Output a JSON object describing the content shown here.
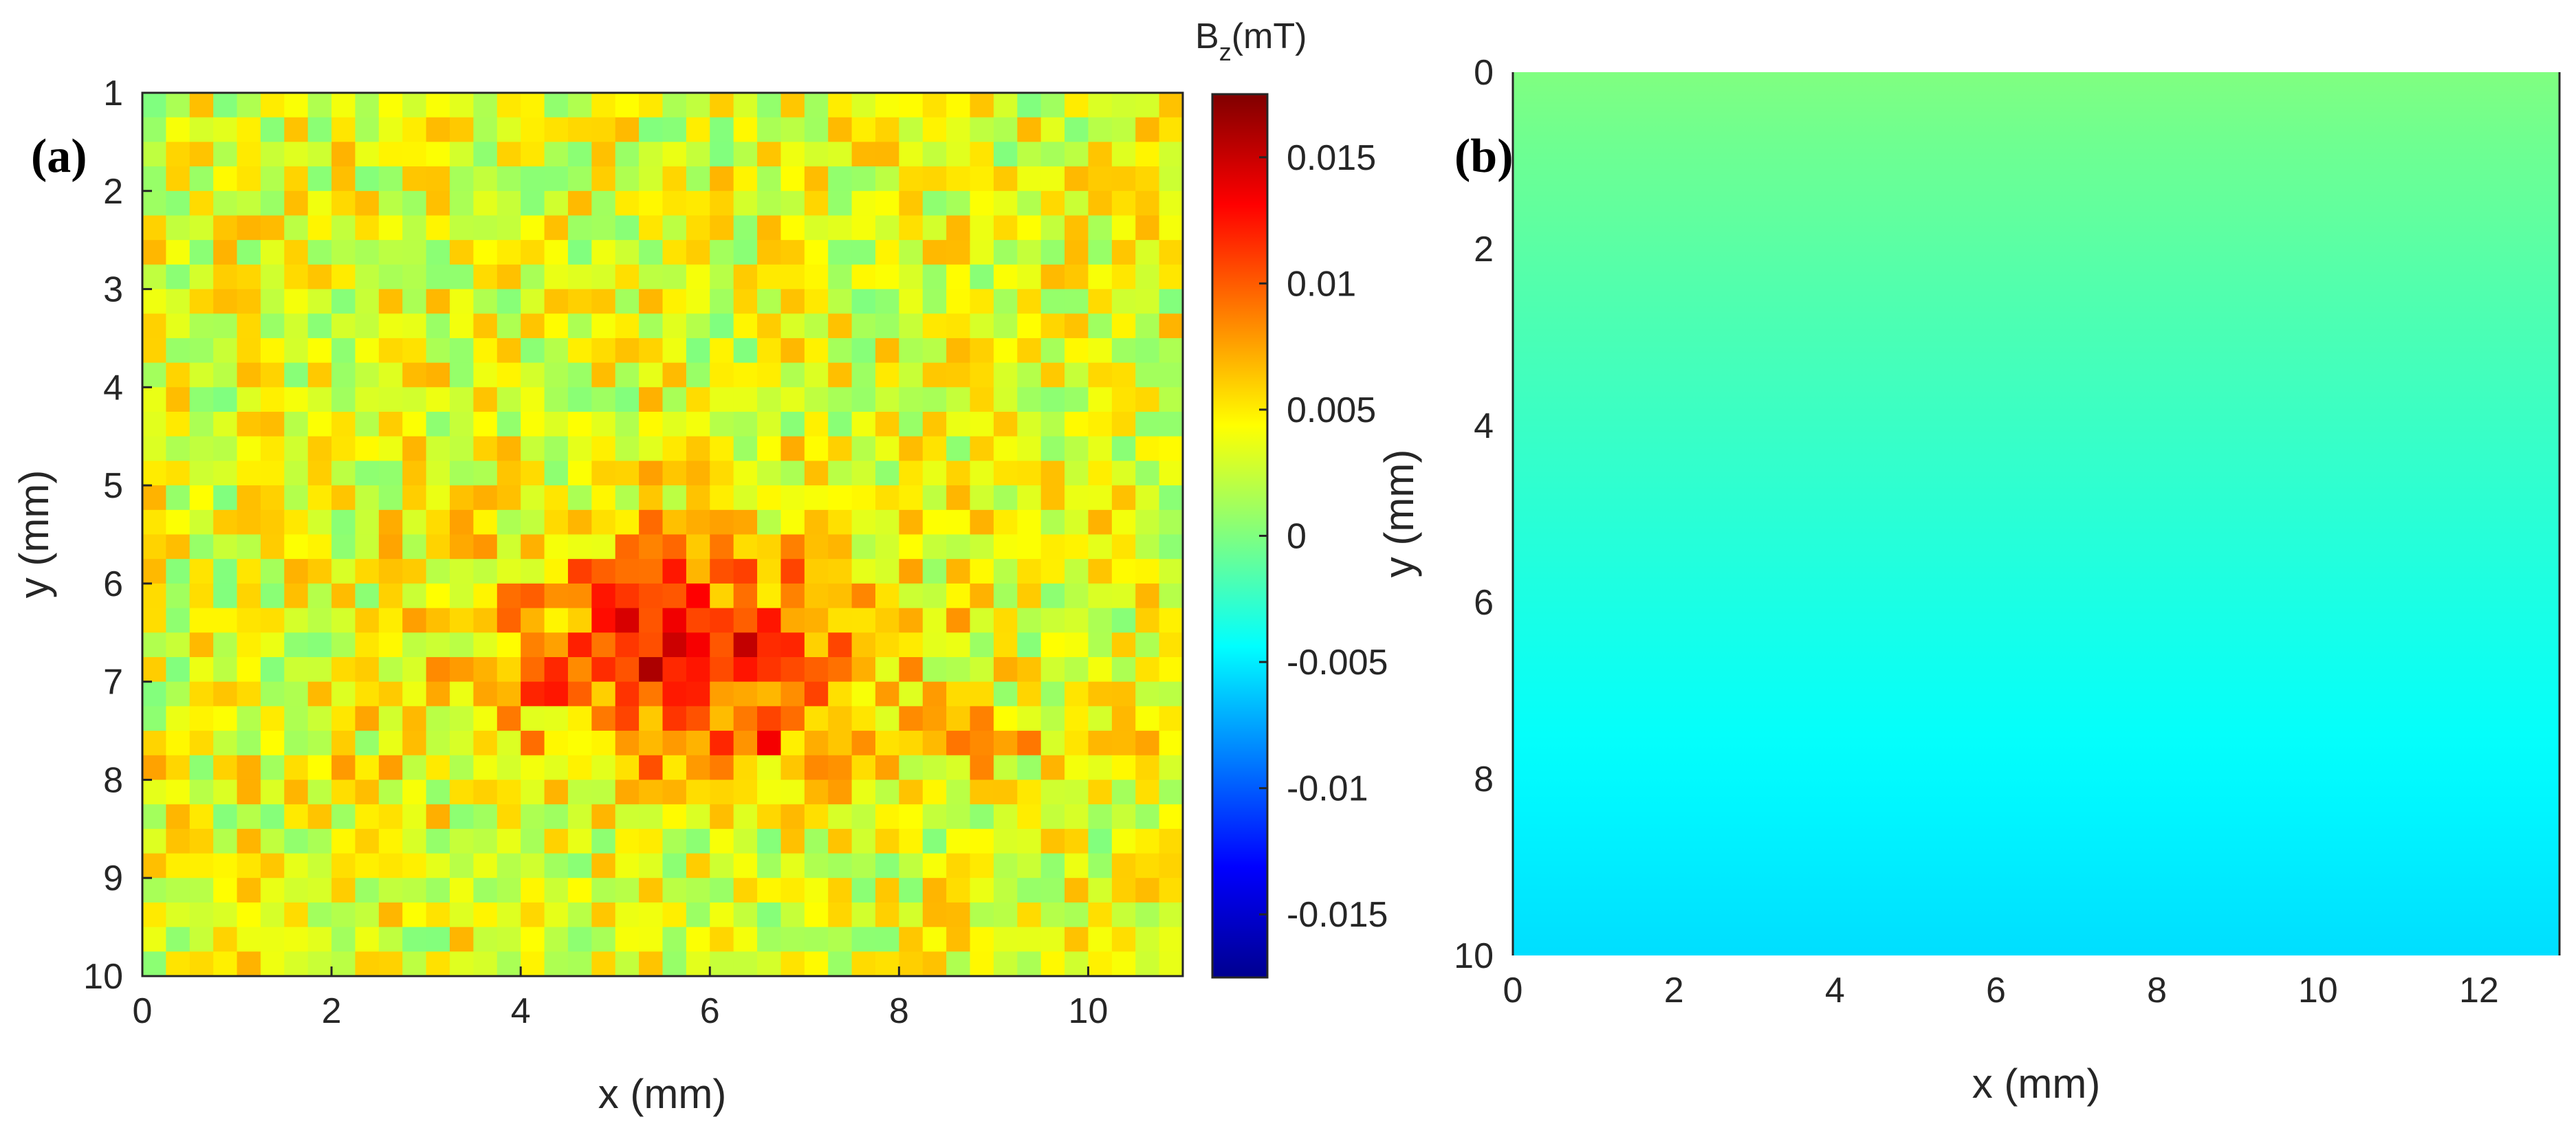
{
  "chart_data": [
    {
      "type": "heatmap",
      "panel_label": "(a)",
      "xlabel": "x (mm)",
      "ylabel": "y (mm)",
      "xlim": [
        0,
        11
      ],
      "ylim": [
        1,
        10
      ],
      "y_direction": "down",
      "xticks": [
        0,
        2,
        4,
        6,
        8,
        10
      ],
      "xtick_labels": [
        "0",
        "2",
        "4",
        "6",
        "8",
        "10"
      ],
      "yticks": [
        1,
        2,
        3,
        4,
        5,
        6,
        7,
        8,
        9,
        10
      ],
      "ytick_labels": [
        "1",
        "2",
        "3",
        "4",
        "5",
        "6",
        "7",
        "8",
        "9",
        "10"
      ],
      "grid_cols": 44,
      "grid_rows": 36,
      "colormap": "jet",
      "clim": [
        -0.0175,
        0.0175
      ],
      "colorbar": {
        "title_main": "B",
        "title_sub": "z",
        "title_unit": "(mT)",
        "ticks": [
          0.015,
          0.01,
          0.005,
          0,
          -0.005,
          -0.01,
          -0.015
        ],
        "tick_labels": [
          "0.015",
          "0.01",
          "0.005",
          "0",
          "-0.005",
          "-0.01",
          "-0.015"
        ]
      },
      "description": "Noisy measured Bz field map; values mostly 0 to 0.008 mT with a strong positive band (up to ~0.017 mT) around y = 5.5–8 mm, x = 3.5–8 mm."
    },
    {
      "type": "heatmap",
      "panel_label": "(b)",
      "xlabel": "x (mm)",
      "ylabel": "y (mm)",
      "xlim": [
        0,
        13
      ],
      "ylim": [
        0,
        10
      ],
      "y_direction": "down",
      "xticks": [
        0,
        2,
        4,
        6,
        8,
        10,
        12
      ],
      "xtick_labels": [
        "0",
        "2",
        "4",
        "6",
        "8",
        "10",
        "12"
      ],
      "yticks": [
        0,
        2,
        4,
        6,
        8,
        10
      ],
      "ytick_labels": [
        "0",
        "2",
        "4",
        "6",
        "8",
        "10"
      ],
      "colormap": "jet",
      "gradient": {
        "direction": "vertical",
        "value_top": 0.0,
        "value_bottom": -0.0055
      },
      "description": "Smooth field map varying only with y, from about 0 mT (green) at y = 0 to about -0.0055 mT (cyan) at y = 10."
    }
  ],
  "colors": {
    "text": "#262626",
    "axis": "#262626",
    "background": "#ffffff"
  }
}
